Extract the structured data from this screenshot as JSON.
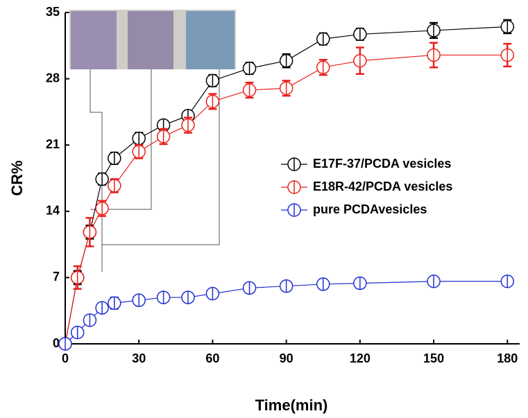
{
  "chart_data": {
    "type": "line",
    "x_label": "Time(min)",
    "y_label": "CR%",
    "x": [
      0,
      5,
      10,
      15,
      20,
      30,
      40,
      50,
      60,
      75,
      90,
      105,
      120,
      150,
      180
    ],
    "xlim": [
      0,
      185
    ],
    "xticks": [
      0,
      30,
      60,
      90,
      120,
      150,
      180
    ],
    "ylim": [
      0,
      35
    ],
    "yticks": [
      0,
      7,
      14,
      21,
      28,
      35
    ],
    "legend": "center-right",
    "series": [
      {
        "name": "E17F-37/PCDA vesicles",
        "color": "#000000",
        "values": [
          0,
          7.0,
          11.8,
          17.4,
          19.6,
          21.7,
          23.1,
          24.1,
          27.8,
          29.1,
          29.9,
          32.2,
          32.7,
          33.1,
          33.5
        ],
        "errors": [
          0.2,
          0.7,
          0.7,
          0.6,
          0.6,
          0.6,
          0.5,
          0.5,
          0.6,
          0.6,
          0.7,
          0.6,
          0.6,
          0.8,
          0.7
        ]
      },
      {
        "name": "E18R-42/PCDA vesicles",
        "color": "#e8201c",
        "values": [
          0,
          7.0,
          11.8,
          14.3,
          16.7,
          20.3,
          21.9,
          23.1,
          25.6,
          26.8,
          27.0,
          29.2,
          29.9,
          30.5,
          30.5
        ],
        "errors": [
          0.2,
          1.2,
          1.5,
          0.8,
          0.7,
          0.7,
          0.8,
          0.8,
          0.8,
          0.8,
          0.8,
          0.8,
          1.4,
          1.3,
          1.2
        ]
      },
      {
        "name": "pure PCDAvesicles",
        "color": "#1f2fd0",
        "values": [
          0,
          1.2,
          2.5,
          3.8,
          4.3,
          4.6,
          4.9,
          4.9,
          5.3,
          5.9,
          6.1,
          6.3,
          6.4,
          6.6,
          6.6
        ],
        "errors": [
          0.2,
          0.3,
          0.3,
          0.3,
          0.6,
          0.4,
          0.4,
          0.4,
          0.4,
          0.4,
          0.5,
          0.5,
          0.5,
          0.4,
          0.4
        ]
      }
    ]
  }
}
